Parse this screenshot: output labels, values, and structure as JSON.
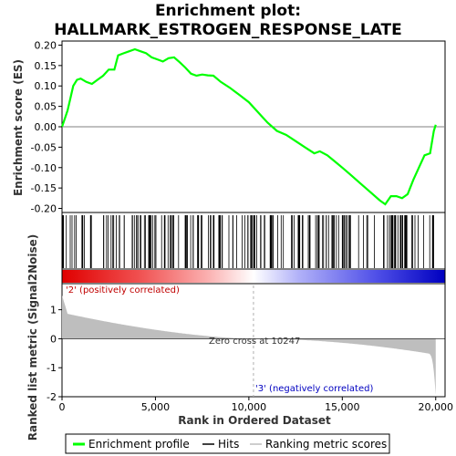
{
  "chart_data": {
    "type": "line",
    "title_line1": "Enrichment plot:",
    "title_line2": "HALLMARK_ESTROGEN_RESPONSE_LATE",
    "ylabel_top": "Enrichment score (ES)",
    "ylabel_bottom": "Ranked list metric (Signal2Noise)",
    "xlabel": "Rank in Ordered Dataset",
    "x_ticks": [
      0,
      5000,
      10000,
      15000,
      20000
    ],
    "x_tick_labels": [
      "0",
      "5,000",
      "10,000",
      "15,000",
      "20,000"
    ],
    "xlim": [
      0,
      20500
    ],
    "es_ylim": [
      -0.21,
      0.21
    ],
    "es_ticks": [
      0.2,
      0.15,
      0.1,
      0.05,
      0.0,
      -0.05,
      -0.1,
      -0.15,
      -0.2
    ],
    "es_tick_labels": [
      "0.20",
      "0.15",
      "0.10",
      "0.05",
      "0.00",
      "-0.05",
      "-0.10",
      "-0.15",
      "-0.20"
    ],
    "metric_ylim": [
      -2.0,
      1.9
    ],
    "metric_ticks": [
      1,
      0,
      -1,
      -2
    ],
    "metric_tick_labels": [
      "1",
      "0",
      "-1",
      "-2"
    ],
    "zero_cross_label": "Zero cross at 10247",
    "zero_cross_rank": 10247,
    "pos_corr_label": "'2' (positively correlated)",
    "neg_corr_label": "'3' (negatively correlated)",
    "legend": [
      "Enrichment profile",
      "Hits",
      "Ranking metric scores"
    ],
    "colors": {
      "es_line": "#00ff00",
      "hits": "#000000",
      "metric_fill": "#bebebe",
      "zero_line": "#b0b0b0",
      "pos": "#ff0000",
      "neg": "#0000ff"
    },
    "es_profile": {
      "x": [
        0,
        150,
        300,
        450,
        600,
        800,
        1000,
        1300,
        1600,
        1900,
        2200,
        2500,
        2800,
        3000,
        3300,
        3600,
        3900,
        4200,
        4500,
        4800,
        5100,
        5400,
        5700,
        6000,
        6300,
        6600,
        6900,
        7200,
        7500,
        7800,
        8100,
        8500,
        9000,
        9500,
        10000,
        10500,
        11000,
        11500,
        12000,
        12500,
        13000,
        13500,
        13800,
        14200,
        14600,
        15000,
        15500,
        16000,
        16500,
        17000,
        17300,
        17600,
        17900,
        18200,
        18500,
        18800,
        19100,
        19400,
        19700,
        19900,
        20000
      ],
      "y": [
        0.0,
        0.02,
        0.04,
        0.07,
        0.1,
        0.115,
        0.118,
        0.11,
        0.105,
        0.115,
        0.125,
        0.14,
        0.14,
        0.175,
        0.18,
        0.185,
        0.19,
        0.185,
        0.18,
        0.17,
        0.165,
        0.16,
        0.168,
        0.17,
        0.158,
        0.145,
        0.13,
        0.125,
        0.128,
        0.126,
        0.125,
        0.11,
        0.095,
        0.078,
        0.06,
        0.035,
        0.01,
        -0.01,
        -0.02,
        -0.035,
        -0.05,
        -0.065,
        -0.06,
        -0.07,
        -0.085,
        -0.1,
        -0.12,
        -0.14,
        -0.16,
        -0.18,
        -0.19,
        -0.17,
        -0.17,
        -0.175,
        -0.165,
        -0.13,
        -0.1,
        -0.07,
        -0.065,
        -0.01,
        0.005
      ]
    },
    "hits_density_note": "hit tick marks distributed across ranks"
  }
}
